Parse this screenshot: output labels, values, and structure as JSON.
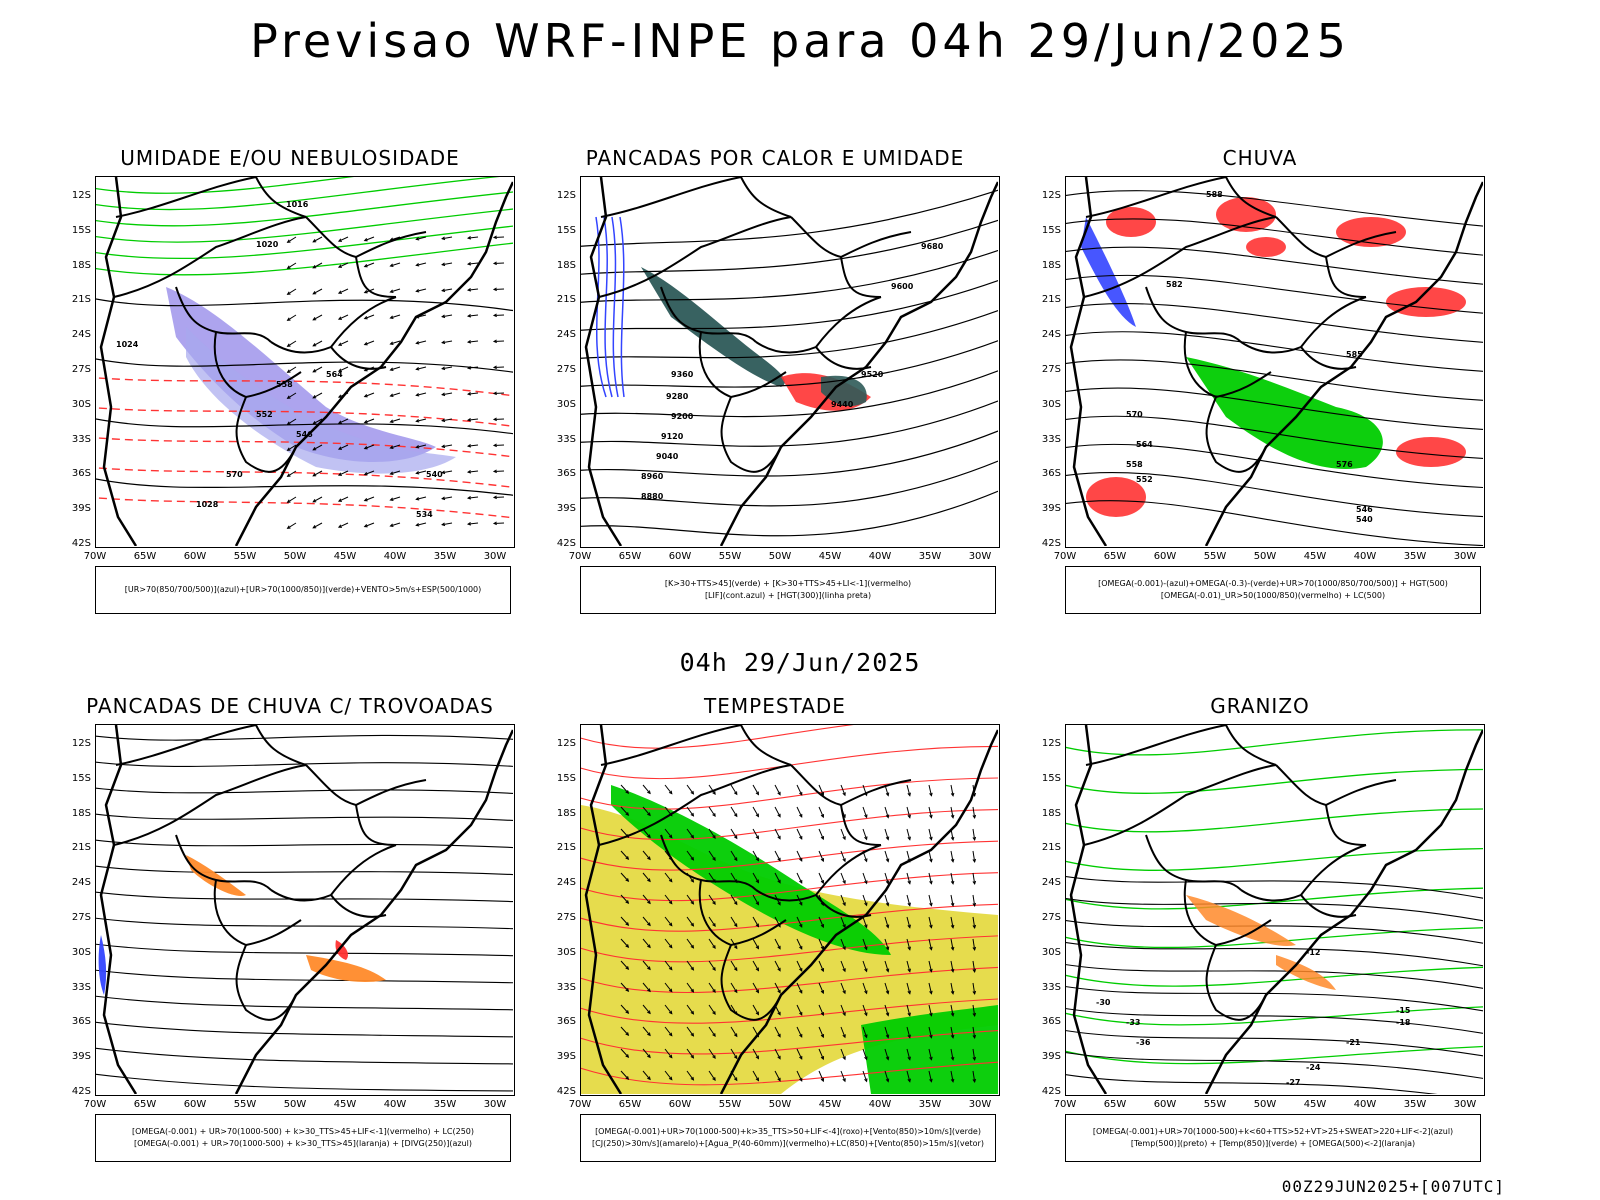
{
  "header": {
    "title": "Previsao WRF-INPE  para 04h 29/Jun/2025"
  },
  "subheader": "04h 29/Jun/2025",
  "footer": "00Z29JUN2025+[007UTC]",
  "axes": {
    "lat_labels": [
      "12S",
      "15S",
      "18S",
      "21S",
      "24S",
      "27S",
      "30S",
      "33S",
      "36S",
      "39S",
      "42S"
    ],
    "lon_labels": [
      "70W",
      "65W",
      "60W",
      "55W",
      "50W",
      "45W",
      "40W",
      "35W",
      "30W"
    ]
  },
  "panels": [
    {
      "title": "UMIDADE E/OU NEBULOSIDADE",
      "legend": [
        "[UR>70(850/700/500)](azul)+[UR>70(1000/850)](verde)+VENTO>5m/s+ESP(500/1000)"
      ],
      "contour_labels": [
        "1016",
        "1020",
        "1024",
        "1028",
        "570",
        "564",
        "558",
        "552",
        "546",
        "540",
        "534"
      ]
    },
    {
      "title": "PANCADAS POR CALOR E UMIDADE",
      "legend": [
        "[K>30+TTS>45](verde) + [K>30+TTS>45+LI<-1](vermelho)",
        "[LIF](cont.azul) + [HGT(300)](linha preta)"
      ],
      "contour_labels": [
        "9680",
        "9600",
        "9520",
        "9440",
        "9360",
        "9280",
        "9200",
        "9120",
        "9040",
        "8960",
        "8880"
      ]
    },
    {
      "title": "CHUVA",
      "legend": [
        "[OMEGA(-0.001)-(azul)+OMEGA(-0.3)-(verde)+UR>70(1000/850/700/500)] + HGT(500)",
        "[OMEGA(-0.01)_UR>50(1000/850)(vermelho) + LC(500)"
      ],
      "contour_labels": [
        "588",
        "585",
        "582",
        "576",
        "570",
        "564",
        "558",
        "552",
        "546",
        "540"
      ]
    },
    {
      "title": "PANCADAS DE CHUVA C/ TROVOADAS",
      "legend": [
        "[OMEGA(-0.001) + UR>70(1000-500) + k>30_TTS>45+LIF<-1](vermelho) + LC(250)",
        "[OMEGA(-0.001) + UR>70(1000-500) + k>30_TTS>45](laranja) + [DIVG(250)](azul)"
      ],
      "contour_labels": []
    },
    {
      "title": "TEMPESTADE",
      "legend": [
        "[OMEGA(-0.001)+UR>70(1000-500)+k>35_TTS>50+LIF<-4](roxo)+[Vento(850)>10m/s](verde)",
        "[CJ(250)>30m/s](amarelo)+[Agua_P(40-60mm)](vermelho)+LC(850)+[Vento(850)>15m/s](vetor)"
      ],
      "contour_labels": []
    },
    {
      "title": "GRANIZO",
      "legend": [
        "[OMEGA(-0.001)+UR>70(1000-500)+k<60+TTS>52+VT>25+SWEAT>220+LIF<-2](azul)",
        "[Temp(500)](preto) + [Temp(850)](verde) + [OMEGA(500)<-2](laranja)"
      ],
      "contour_labels": [
        "-12",
        "-15",
        "-18",
        "-21",
        "-24",
        "-27",
        "-30",
        "-33",
        "-36"
      ]
    }
  ],
  "colors": {
    "black": "#000000",
    "green": "#00cc00",
    "red": "#ff3333",
    "blue": "#3344ff",
    "purple": "#6a5ae0",
    "yellow": "#e3d83a",
    "teal": "#2d5a58",
    "orange": "#ff8a2a"
  }
}
